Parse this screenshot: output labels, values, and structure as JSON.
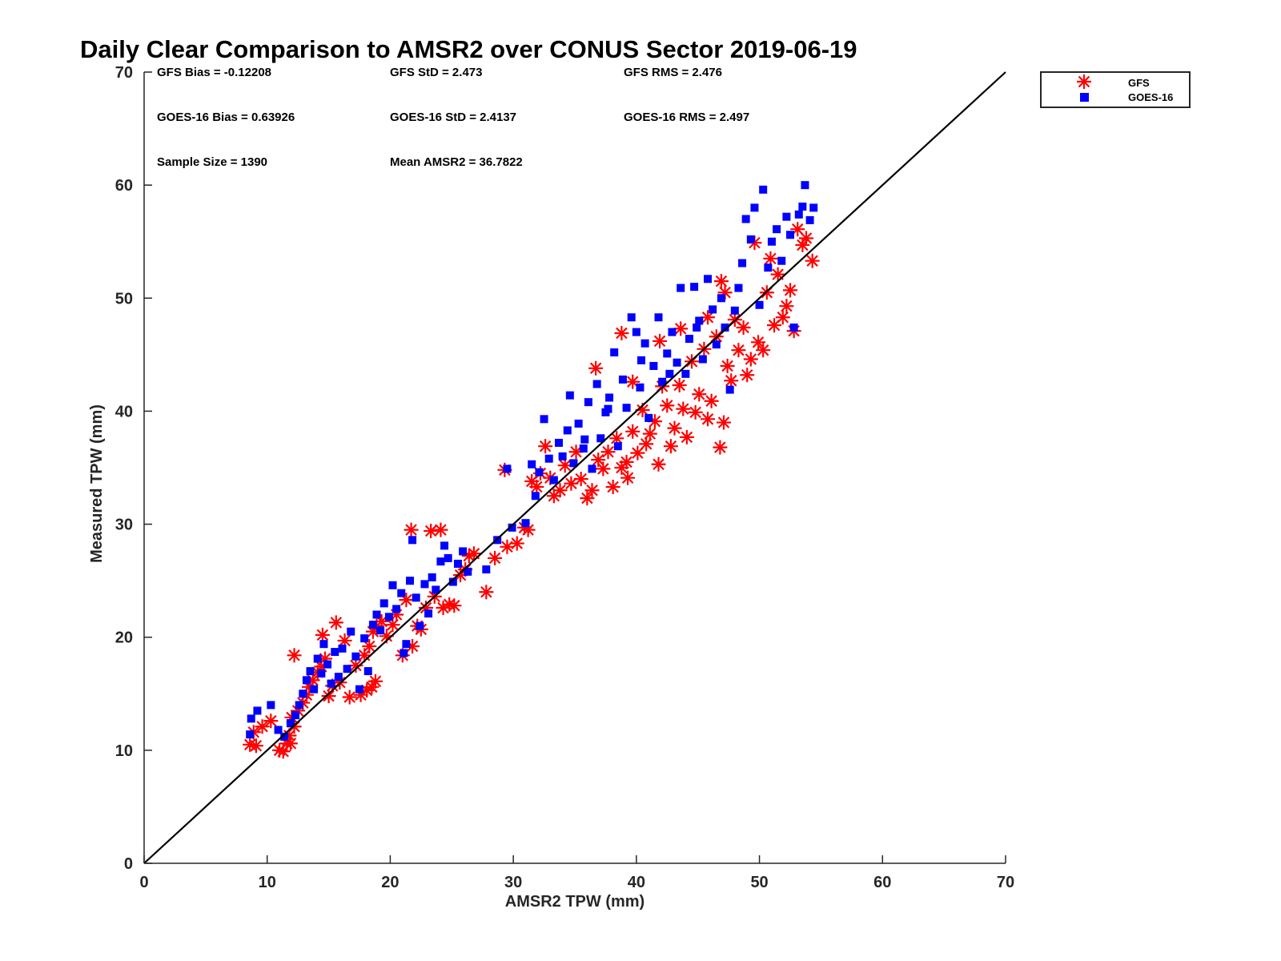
{
  "chart_data": {
    "type": "scatter",
    "title": "Daily Clear Comparison to AMSR2 over CONUS Sector 2019-06-19",
    "xlabel": "AMSR2 TPW (mm)",
    "ylabel": "Measured TPW (mm)",
    "xlim": [
      0,
      70
    ],
    "ylim": [
      0,
      70
    ],
    "xticks": [
      "0",
      "10",
      "20",
      "30",
      "40",
      "50",
      "60",
      "70"
    ],
    "yticks": [
      "0",
      "10",
      "20",
      "30",
      "40",
      "50",
      "60",
      "70"
    ],
    "grid": false,
    "legend_position": "outside-top-right",
    "reference_line": {
      "x": [
        0,
        70
      ],
      "y": [
        0,
        70
      ],
      "color": "#000000"
    },
    "stats": {
      "gfs_bias": "GFS Bias = -0.12208",
      "gfs_std": "GFS StD = 2.473",
      "gfs_rms": "GFS RMS = 2.476",
      "goes_bias": "GOES-16 Bias = 0.63926",
      "goes_std": "GOES-16 StD = 2.4137",
      "goes_rms": "GOES-16 RMS = 2.497",
      "sample_size": "Sample Size = 1390",
      "mean_amsr2": "Mean AMSR2 = 36.7822"
    },
    "series": [
      {
        "name": "GFS",
        "marker": "asterisk",
        "color": "#ff0000",
        "points": [
          [
            8.6,
            10.5
          ],
          [
            9.1,
            10.4
          ],
          [
            8.9,
            11.6
          ],
          [
            9.6,
            12.1
          ],
          [
            10.3,
            12.6
          ],
          [
            11.0,
            10.0
          ],
          [
            11.3,
            9.9
          ],
          [
            11.6,
            10.6
          ],
          [
            11.9,
            10.6
          ],
          [
            11.8,
            11.3
          ],
          [
            12.2,
            12.1
          ],
          [
            12.0,
            12.9
          ],
          [
            12.5,
            13.5
          ],
          [
            12.2,
            18.4
          ],
          [
            12.9,
            14.2
          ],
          [
            13.2,
            14.9
          ],
          [
            13.4,
            15.6
          ],
          [
            13.7,
            16.2
          ],
          [
            14.1,
            16.9
          ],
          [
            14.4,
            17.4
          ],
          [
            14.7,
            18.1
          ],
          [
            14.5,
            20.2
          ],
          [
            15.0,
            14.8
          ],
          [
            15.3,
            15.7
          ],
          [
            15.6,
            21.3
          ],
          [
            15.9,
            16.0
          ],
          [
            16.3,
            19.7
          ],
          [
            16.7,
            14.7
          ],
          [
            17.2,
            17.5
          ],
          [
            17.6,
            14.9
          ],
          [
            18.1,
            15.3
          ],
          [
            18.5,
            15.6
          ],
          [
            18.8,
            16.1
          ],
          [
            17.9,
            18.4
          ],
          [
            18.3,
            19.2
          ],
          [
            18.6,
            20.5
          ],
          [
            18.9,
            21.0
          ],
          [
            19.3,
            21.4
          ],
          [
            19.7,
            20.1
          ],
          [
            20.2,
            21.1
          ],
          [
            20.5,
            22.0
          ],
          [
            21.0,
            18.4
          ],
          [
            21.3,
            23.3
          ],
          [
            21.7,
            29.5
          ],
          [
            21.8,
            19.2
          ],
          [
            22.2,
            21.0
          ],
          [
            22.5,
            20.7
          ],
          [
            22.9,
            22.6
          ],
          [
            23.3,
            29.4
          ],
          [
            23.6,
            23.6
          ],
          [
            24.1,
            29.5
          ],
          [
            24.3,
            22.6
          ],
          [
            24.8,
            22.9
          ],
          [
            25.2,
            22.8
          ],
          [
            25.7,
            25.5
          ],
          [
            26.1,
            26.0
          ],
          [
            26.4,
            27.2
          ],
          [
            26.8,
            27.4
          ],
          [
            27.8,
            24.0
          ],
          [
            28.5,
            27.0
          ],
          [
            29.3,
            34.8
          ],
          [
            29.5,
            28.0
          ],
          [
            30.3,
            28.3
          ],
          [
            30.9,
            29.7
          ],
          [
            31.2,
            29.5
          ],
          [
            31.5,
            33.8
          ],
          [
            31.9,
            33.3
          ],
          [
            32.2,
            34.5
          ],
          [
            32.6,
            36.9
          ],
          [
            33.0,
            34.1
          ],
          [
            33.3,
            32.5
          ],
          [
            33.8,
            33.0
          ],
          [
            34.2,
            35.2
          ],
          [
            34.7,
            33.6
          ],
          [
            35.1,
            36.4
          ],
          [
            35.5,
            34.0
          ],
          [
            36.0,
            32.3
          ],
          [
            36.4,
            33.0
          ],
          [
            36.9,
            35.7
          ],
          [
            37.3,
            34.9
          ],
          [
            37.7,
            36.4
          ],
          [
            38.1,
            33.3
          ],
          [
            38.4,
            37.6
          ],
          [
            38.8,
            35.0
          ],
          [
            39.2,
            35.5
          ],
          [
            39.3,
            34.1
          ],
          [
            39.7,
            38.2
          ],
          [
            40.1,
            36.3
          ],
          [
            40.5,
            40.1
          ],
          [
            40.8,
            37.1
          ],
          [
            41.1,
            38.0
          ],
          [
            41.5,
            39.1
          ],
          [
            41.8,
            35.3
          ],
          [
            42.1,
            42.2
          ],
          [
            42.5,
            40.5
          ],
          [
            42.8,
            36.9
          ],
          [
            43.1,
            38.5
          ],
          [
            43.5,
            42.3
          ],
          [
            43.8,
            40.2
          ],
          [
            44.1,
            37.7
          ],
          [
            44.5,
            44.4
          ],
          [
            44.8,
            39.9
          ],
          [
            45.1,
            41.5
          ],
          [
            45.5,
            45.5
          ],
          [
            45.8,
            39.3
          ],
          [
            46.1,
            40.9
          ],
          [
            46.5,
            46.6
          ],
          [
            46.8,
            36.8
          ],
          [
            46.9,
            51.5
          ],
          [
            47.1,
            39.0
          ],
          [
            47.4,
            44.0
          ],
          [
            47.7,
            42.7
          ],
          [
            48.0,
            48.1
          ],
          [
            48.3,
            45.4
          ],
          [
            48.7,
            47.4
          ],
          [
            49.0,
            43.2
          ],
          [
            49.3,
            44.6
          ],
          [
            49.6,
            54.9
          ],
          [
            49.9,
            46.1
          ],
          [
            50.3,
            45.4
          ],
          [
            50.6,
            50.5
          ],
          [
            50.9,
            53.5
          ],
          [
            51.2,
            47.6
          ],
          [
            51.5,
            52.1
          ],
          [
            51.9,
            48.3
          ],
          [
            52.2,
            49.3
          ],
          [
            52.5,
            50.7
          ],
          [
            52.8,
            47.1
          ],
          [
            53.1,
            56.1
          ],
          [
            53.5,
            54.7
          ],
          [
            53.8,
            55.3
          ],
          [
            54.3,
            53.3
          ],
          [
            39.7,
            42.6
          ],
          [
            41.9,
            46.2
          ],
          [
            43.6,
            47.3
          ],
          [
            45.8,
            48.3
          ],
          [
            47.2,
            50.5
          ],
          [
            38.8,
            46.9
          ],
          [
            36.7,
            43.8
          ]
        ]
      },
      {
        "name": "GOES-16",
        "marker": "square",
        "color": "#0000ff",
        "points": [
          [
            8.6,
            11.4
          ],
          [
            8.7,
            12.8
          ],
          [
            9.2,
            13.5
          ],
          [
            10.3,
            14.0
          ],
          [
            10.9,
            11.8
          ],
          [
            11.4,
            11.2
          ],
          [
            11.9,
            12.4
          ],
          [
            12.3,
            13.1
          ],
          [
            12.6,
            14.0
          ],
          [
            12.9,
            15.0
          ],
          [
            13.2,
            16.2
          ],
          [
            13.5,
            17.0
          ],
          [
            13.8,
            15.4
          ],
          [
            14.1,
            18.1
          ],
          [
            14.4,
            16.8
          ],
          [
            14.6,
            19.4
          ],
          [
            14.9,
            17.6
          ],
          [
            15.2,
            15.9
          ],
          [
            15.5,
            18.7
          ],
          [
            15.8,
            16.5
          ],
          [
            16.1,
            19.0
          ],
          [
            16.5,
            17.2
          ],
          [
            16.8,
            20.5
          ],
          [
            17.2,
            18.3
          ],
          [
            17.5,
            15.4
          ],
          [
            17.9,
            19.9
          ],
          [
            18.2,
            17.0
          ],
          [
            18.6,
            21.1
          ],
          [
            18.9,
            22.0
          ],
          [
            19.2,
            20.6
          ],
          [
            19.5,
            23.0
          ],
          [
            19.9,
            21.8
          ],
          [
            20.2,
            24.6
          ],
          [
            20.5,
            22.5
          ],
          [
            20.9,
            23.9
          ],
          [
            21.1,
            18.6
          ],
          [
            21.3,
            19.4
          ],
          [
            21.6,
            25.0
          ],
          [
            21.8,
            28.6
          ],
          [
            22.1,
            23.5
          ],
          [
            22.4,
            21.0
          ],
          [
            22.8,
            24.7
          ],
          [
            23.1,
            22.1
          ],
          [
            23.4,
            25.3
          ],
          [
            23.7,
            24.2
          ],
          [
            24.1,
            26.7
          ],
          [
            24.4,
            28.1
          ],
          [
            24.7,
            27.0
          ],
          [
            25.1,
            24.9
          ],
          [
            25.5,
            26.5
          ],
          [
            25.9,
            27.6
          ],
          [
            26.3,
            25.8
          ],
          [
            27.8,
            26.0
          ],
          [
            28.7,
            28.6
          ],
          [
            29.5,
            34.9
          ],
          [
            29.9,
            29.7
          ],
          [
            31.0,
            30.1
          ],
          [
            31.5,
            35.3
          ],
          [
            31.8,
            32.5
          ],
          [
            32.1,
            34.6
          ],
          [
            32.5,
            39.3
          ],
          [
            32.9,
            35.8
          ],
          [
            33.3,
            33.9
          ],
          [
            33.7,
            37.2
          ],
          [
            34.0,
            36.0
          ],
          [
            34.4,
            38.3
          ],
          [
            34.6,
            41.4
          ],
          [
            34.9,
            35.4
          ],
          [
            35.3,
            38.9
          ],
          [
            35.7,
            36.7
          ],
          [
            36.1,
            40.8
          ],
          [
            36.4,
            34.9
          ],
          [
            36.8,
            42.4
          ],
          [
            37.1,
            37.6
          ],
          [
            37.5,
            39.9
          ],
          [
            37.8,
            41.2
          ],
          [
            38.2,
            45.2
          ],
          [
            38.5,
            36.9
          ],
          [
            38.9,
            42.8
          ],
          [
            39.2,
            40.3
          ],
          [
            39.6,
            48.3
          ],
          [
            40.0,
            47.0
          ],
          [
            40.3,
            42.1
          ],
          [
            40.7,
            46.0
          ],
          [
            41.0,
            39.4
          ],
          [
            41.4,
            44.0
          ],
          [
            41.8,
            48.3
          ],
          [
            42.1,
            42.6
          ],
          [
            42.5,
            45.1
          ],
          [
            42.9,
            47.0
          ],
          [
            43.3,
            44.3
          ],
          [
            43.6,
            50.9
          ],
          [
            44.0,
            43.3
          ],
          [
            44.3,
            46.4
          ],
          [
            44.7,
            51.0
          ],
          [
            45.1,
            48.0
          ],
          [
            45.4,
            44.6
          ],
          [
            45.8,
            51.7
          ],
          [
            46.2,
            49.0
          ],
          [
            46.5,
            45.9
          ],
          [
            46.9,
            50.0
          ],
          [
            47.2,
            47.4
          ],
          [
            47.6,
            41.9
          ],
          [
            48.0,
            48.9
          ],
          [
            48.3,
            50.9
          ],
          [
            48.6,
            53.1
          ],
          [
            48.9,
            57.0
          ],
          [
            49.3,
            55.2
          ],
          [
            49.6,
            58.0
          ],
          [
            50.0,
            49.4
          ],
          [
            50.3,
            59.6
          ],
          [
            50.7,
            52.7
          ],
          [
            51.0,
            55.0
          ],
          [
            51.4,
            56.1
          ],
          [
            51.8,
            53.3
          ],
          [
            52.2,
            57.2
          ],
          [
            52.5,
            55.6
          ],
          [
            52.8,
            47.4
          ],
          [
            53.2,
            57.4
          ],
          [
            53.5,
            58.1
          ],
          [
            53.7,
            60.0
          ],
          [
            54.1,
            56.9
          ],
          [
            54.4,
            58.0
          ],
          [
            40.4,
            44.5
          ],
          [
            42.7,
            43.3
          ],
          [
            44.9,
            47.4
          ],
          [
            37.7,
            40.2
          ],
          [
            35.8,
            37.5
          ]
        ]
      }
    ]
  }
}
